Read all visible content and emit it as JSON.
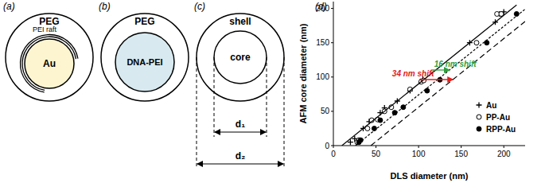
{
  "diagrams": [
    {
      "label": "(a)",
      "outer": "PEG",
      "inner": "Au",
      "raft": "PEI raft"
    },
    {
      "label": "(b)",
      "outer": "PEG",
      "inner": "DNA-PEI"
    },
    {
      "label": "(c)",
      "outer": "shell",
      "inner": "core",
      "inner_dim": "d₁",
      "outer_dim": "d₂"
    }
  ],
  "chart_data": {
    "type": "scatter",
    "panel_label": "(d)",
    "x_label": "DLS diameter (nm)",
    "y_label": "AFM core diameter (nm)",
    "xlim": [
      0,
      225
    ],
    "ylim": [
      0,
      210
    ],
    "xticks": [
      0,
      50,
      100,
      150,
      200
    ],
    "yticks": [
      0,
      50,
      100,
      150,
      200
    ],
    "grid": false,
    "legend": "lower right",
    "annotations": [
      {
        "text": "16 nm shift",
        "color": "#2e9e3e"
      },
      {
        "text": "34 nm shift",
        "color": "#e0201b"
      }
    ],
    "series": [
      {
        "name": "Au",
        "type": "scatter",
        "marker": "plus",
        "color": "#000000",
        "x": [
          20,
          25,
          35,
          42,
          55,
          60,
          75,
          90,
          105,
          160,
          190,
          195,
          200
        ],
        "values": [
          5,
          10,
          25,
          35,
          48,
          55,
          65,
          80,
          97,
          150,
          180,
          192,
          195
        ]
      },
      {
        "name": "PP-Au",
        "type": "scatter",
        "marker": "circle-open",
        "color": "#000000",
        "x": [
          28,
          30,
          40,
          45,
          52,
          60,
          68,
          90,
          103,
          106,
          168,
          192,
          197
        ],
        "values": [
          5,
          8,
          25,
          37,
          38,
          50,
          56,
          82,
          93,
          95,
          150,
          192,
          192
        ]
      },
      {
        "name": "RPP-Au",
        "type": "scatter",
        "marker": "circle",
        "color": "#000000",
        "x": [
          30,
          32,
          48,
          55,
          72,
          82,
          110,
          125,
          180,
          215
        ],
        "values": [
          5,
          8,
          25,
          37,
          48,
          56,
          80,
          96,
          150,
          192
        ]
      },
      {
        "type": "line",
        "line_style": "solid",
        "color": "#000000",
        "x": [
          10,
          215
        ],
        "values": [
          0,
          205
        ]
      },
      {
        "type": "line",
        "line_style": "dotted",
        "color": "#000000",
        "x": [
          26,
          225
        ],
        "values": [
          0,
          199
        ]
      },
      {
        "type": "line",
        "line_style": "dashed",
        "color": "#000000",
        "x": [
          44,
          225
        ],
        "values": [
          0,
          181
        ]
      }
    ]
  }
}
